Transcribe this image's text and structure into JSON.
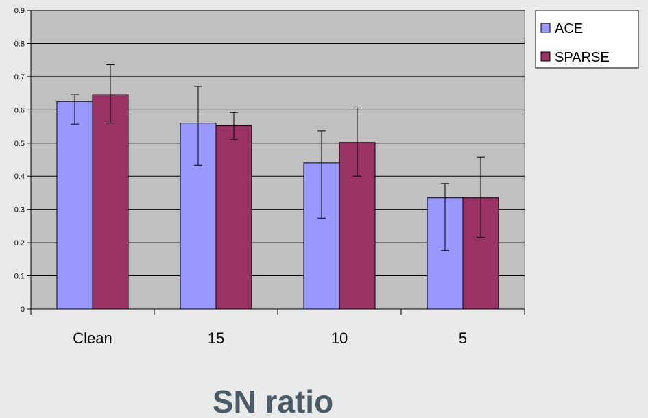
{
  "chart_data": {
    "type": "bar",
    "title": "",
    "xlabel": "SN ratio",
    "ylabel": "",
    "categories": [
      "Clean",
      "15",
      "10",
      "5"
    ],
    "ylim": [
      0,
      0.9
    ],
    "yticks": [
      "0",
      "0.1",
      "0.2",
      "0.3",
      "0.4",
      "0.5",
      "0.6",
      "0.7",
      "0.8",
      "0.9"
    ],
    "grid": true,
    "legend_position": "top-right",
    "series": [
      {
        "name": "ACE",
        "color": "#9999ff",
        "values": [
          0.625,
          0.56,
          0.44,
          0.335
        ],
        "error_low": [
          0.557,
          0.433,
          0.274,
          0.176
        ],
        "error_high": [
          0.646,
          0.671,
          0.537,
          0.378
        ]
      },
      {
        "name": "SPARSE",
        "color": "#993366",
        "values": [
          0.646,
          0.552,
          0.502,
          0.335
        ],
        "error_low": [
          0.56,
          0.51,
          0.4,
          0.216
        ],
        "error_high": [
          0.736,
          0.592,
          0.606,
          0.458
        ]
      }
    ],
    "plot_background": "#c0c0c0"
  }
}
